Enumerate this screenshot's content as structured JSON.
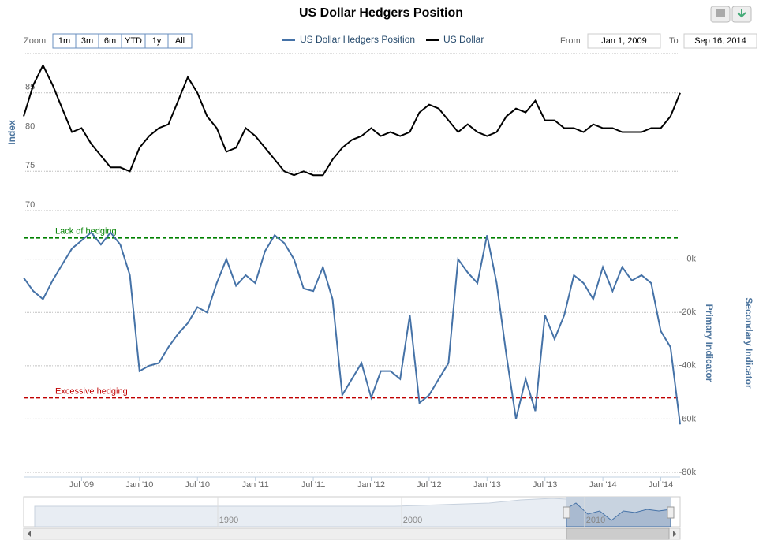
{
  "chart_data": {
    "type": "line",
    "title": "US Dollar Hedgers Position",
    "x": [
      "2009-01",
      "2009-02",
      "2009-03",
      "2009-04",
      "2009-05",
      "2009-06",
      "2009-07",
      "2009-08",
      "2009-09",
      "2009-10",
      "2009-11",
      "2009-12",
      "2010-01",
      "2010-02",
      "2010-03",
      "2010-04",
      "2010-05",
      "2010-06",
      "2010-07",
      "2010-08",
      "2010-09",
      "2010-10",
      "2010-11",
      "2010-12",
      "2011-01",
      "2011-02",
      "2011-03",
      "2011-04",
      "2011-05",
      "2011-06",
      "2011-07",
      "2011-08",
      "2011-09",
      "2011-10",
      "2011-11",
      "2011-12",
      "2012-01",
      "2012-02",
      "2012-03",
      "2012-04",
      "2012-05",
      "2012-06",
      "2012-07",
      "2012-08",
      "2012-09",
      "2012-10",
      "2012-11",
      "2012-12",
      "2013-01",
      "2013-02",
      "2013-03",
      "2013-04",
      "2013-05",
      "2013-06",
      "2013-07",
      "2013-08",
      "2013-09",
      "2013-10",
      "2013-11",
      "2013-12",
      "2014-01",
      "2014-02",
      "2014-03",
      "2014-04",
      "2014-05",
      "2014-06",
      "2014-07",
      "2014-08",
      "2014-09"
    ],
    "xlim": [
      "2009-01",
      "2014-09"
    ],
    "xticks": [
      {
        "value": "2009-07",
        "label": "Jul '09"
      },
      {
        "value": "2010-01",
        "label": "Jan '10"
      },
      {
        "value": "2010-07",
        "label": "Jul '10"
      },
      {
        "value": "2011-01",
        "label": "Jan '11"
      },
      {
        "value": "2011-07",
        "label": "Jul '11"
      },
      {
        "value": "2012-01",
        "label": "Jan '12"
      },
      {
        "value": "2012-07",
        "label": "Jul '12"
      },
      {
        "value": "2013-01",
        "label": "Jan '13"
      },
      {
        "value": "2013-07",
        "label": "Jul '13"
      },
      {
        "value": "2014-01",
        "label": "Jan '14"
      },
      {
        "value": "2014-07",
        "label": "Jul '14"
      }
    ],
    "ylabel": "Index",
    "ylim": [
      70,
      90
    ],
    "yticks": [
      70,
      75,
      80,
      85
    ],
    "y2labels": [
      "Primary Indicator",
      "Secondary Indicator"
    ],
    "y2lim": [
      -80000,
      15000
    ],
    "y2ticks": [
      {
        "value": 0,
        "label": "0k"
      },
      {
        "value": -20000,
        "label": "-20k"
      },
      {
        "value": -40000,
        "label": "-40k"
      },
      {
        "value": -60000,
        "label": "-60k"
      },
      {
        "value": -80000,
        "label": "-80k"
      }
    ],
    "grid": true,
    "plot_lines": [
      {
        "label": "Lack of hedging",
        "value": 8000,
        "color": "#008000"
      },
      {
        "label": "Excessive hedging",
        "value": -52000,
        "color": "#c00000"
      }
    ],
    "series": [
      {
        "name": "US Dollar Hedgers Position",
        "color": "#4572a7",
        "axis": "y2",
        "values": [
          -7000,
          -12000,
          -15000,
          -8000,
          -2000,
          4000,
          7000,
          10000,
          5500,
          10000,
          5500,
          -6000,
          -42000,
          -40000,
          -39000,
          -33000,
          -28000,
          -24000,
          -18000,
          -20000,
          -9000,
          0,
          -10000,
          -6000,
          -9000,
          3000,
          9000,
          6000,
          0,
          -11000,
          -12000,
          -3000,
          -15000,
          -51000,
          -45000,
          -39000,
          -52000,
          -42000,
          -42000,
          -45000,
          -21000,
          -54000,
          -51000,
          -45000,
          -39000,
          0,
          -5000,
          -9000,
          9000,
          -9000,
          -36000,
          -60000,
          -45000,
          -57000,
          -21000,
          -30000,
          -21000,
          -6000,
          -9000,
          -15000,
          -3000,
          -12000,
          -3000,
          -8000,
          -6000,
          -9000,
          -27000,
          -33000,
          -62000
        ]
      },
      {
        "name": "US Dollar",
        "color": "#000000",
        "values": [
          82,
          86,
          88.5,
          86,
          83,
          80,
          80.5,
          78.5,
          77,
          75.5,
          75.5,
          75,
          78,
          79.5,
          80.5,
          81,
          84,
          87,
          85,
          82,
          80.5,
          77.5,
          78,
          80.5,
          79.5,
          78,
          76.5,
          75,
          74.5,
          75,
          74.5,
          74.5,
          76.5,
          78,
          79,
          79.5,
          80.5,
          79.5,
          80,
          79.5,
          80,
          82.5,
          83.5,
          83,
          81.5,
          80,
          81,
          80,
          79.5,
          80,
          82,
          83,
          82.5,
          84,
          81.5,
          81.5,
          80.5,
          80.5,
          80,
          81,
          80.5,
          80.5,
          80,
          80,
          80,
          80.5,
          80.5,
          82,
          85
        ]
      }
    ]
  },
  "ui": {
    "zoom_label": "Zoom",
    "zoom_buttons": [
      "1m",
      "3m",
      "6m",
      "YTD",
      "1y",
      "All"
    ],
    "from_label": "From",
    "from_value": "Jan 1, 2009",
    "to_label": "To",
    "to_value": "Sep 16, 2014"
  },
  "navigator": {
    "labels": [
      "1990",
      "2000",
      "2010"
    ]
  }
}
